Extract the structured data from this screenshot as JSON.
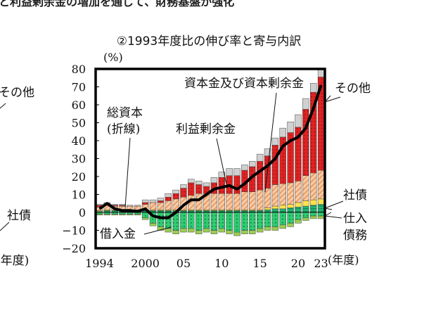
{
  "page_header": "と利益剰余金の増加を通じて、財務基盤が強化",
  "left_fragments": {
    "other": "その他",
    "bonds": "社債",
    "year": "(年度)"
  },
  "chart_data": {
    "type": "bar",
    "stacked": true,
    "title": "②1993年度比の伸び率と寄与内訳",
    "ylabel": "(%)",
    "xlabel": "(年度)",
    "ylim": [
      -20,
      80
    ],
    "yticks": [
      80,
      70,
      60,
      50,
      40,
      30,
      20,
      10,
      0,
      -10,
      -20
    ],
    "xtick_labels": [
      {
        "year": 1994,
        "label": "1994"
      },
      {
        "year": 2000,
        "label": "2000"
      },
      {
        "year": 2005,
        "label": "05"
      },
      {
        "year": 2010,
        "label": "10"
      },
      {
        "year": 2015,
        "label": "15"
      },
      {
        "year": 2020,
        "label": "20"
      },
      {
        "year": 2023,
        "label": "23"
      }
    ],
    "x": [
      1994,
      1995,
      1996,
      1997,
      1998,
      1999,
      2000,
      2001,
      2002,
      2003,
      2004,
      2005,
      2006,
      2007,
      2008,
      2009,
      2010,
      2011,
      2012,
      2013,
      2014,
      2015,
      2016,
      2017,
      2018,
      2019,
      2020,
      2021,
      2022,
      2023
    ],
    "series": [
      {
        "key": "borrowings",
        "name": "借入金",
        "color": "#2ecc71",
        "values": [
          -1,
          -1,
          -1,
          -1,
          -1,
          -1,
          -3,
          -6,
          -8,
          -9,
          -10,
          -9,
          -9,
          -10,
          -9,
          -10,
          -9,
          -10,
          -11,
          -10,
          -10,
          -9,
          -8,
          -8,
          -7,
          -6,
          -4,
          -3,
          -2,
          -2
        ]
      },
      {
        "key": "trade_payables",
        "name": "仕入債務",
        "color": "#9acd50",
        "values": [
          -0.5,
          -0.5,
          -0.5,
          -0.5,
          -0.5,
          -0.5,
          -1,
          -1.5,
          -2,
          -2,
          -2,
          -2,
          -2,
          -2,
          -2,
          -2,
          -2,
          -2,
          -2,
          -2,
          -2,
          -2,
          -2,
          -2,
          -2,
          -2,
          -2,
          -1.5,
          -1.5,
          -1.5
        ]
      },
      {
        "key": "bonds",
        "name": "社債",
        "color": "#22b573",
        "values": [
          0.5,
          1,
          1,
          1,
          1,
          1,
          1,
          1,
          1,
          1,
          1,
          1,
          1,
          1,
          1,
          1,
          1,
          1,
          1,
          1,
          1,
          1,
          1.5,
          2,
          2,
          2.5,
          3,
          3.5,
          4,
          4.5
        ]
      },
      {
        "key": "yellow",
        "name": "",
        "color": "#ffe24a",
        "values": [
          0.5,
          0.5,
          0.5,
          0.5,
          0.5,
          0.5,
          0.5,
          0.5,
          0.5,
          0.5,
          0.5,
          0.5,
          0.5,
          0.5,
          0.5,
          0.5,
          0.5,
          0.5,
          0.5,
          0.5,
          0.5,
          0.5,
          1,
          1.5,
          2,
          2,
          2.5,
          3,
          3,
          3
        ]
      },
      {
        "key": "capital",
        "name": "資本金及び資本剰余金",
        "color": "#f4b887",
        "values": [
          2,
          2.5,
          2,
          2,
          2,
          2,
          3,
          4,
          4,
          5,
          6,
          7,
          8,
          9,
          9,
          9,
          9,
          9,
          9,
          10,
          10,
          11,
          11,
          12,
          12,
          12,
          12,
          14,
          15,
          16
        ]
      },
      {
        "key": "retained",
        "name": "利益剰余金",
        "color": "#dd2222",
        "values": [
          1,
          1,
          0.5,
          0.5,
          0,
          0,
          1,
          0,
          1,
          2,
          3,
          5,
          7,
          5,
          4,
          6,
          9,
          10,
          10,
          12,
          14,
          16,
          18,
          22,
          26,
          28,
          30,
          37,
          45,
          52
        ]
      },
      {
        "key": "other",
        "name": "その他",
        "color": "#d0d0d0",
        "values": [
          0.5,
          0.5,
          0.5,
          0.5,
          0.5,
          0.5,
          1.5,
          1.5,
          1.5,
          2,
          2,
          2,
          2,
          2,
          2,
          3,
          3,
          4,
          4,
          3,
          3,
          4,
          4,
          4,
          5,
          6,
          7,
          6,
          5,
          5
        ]
      }
    ],
    "line": {
      "name": "総資本(折線)",
      "values": [
        2,
        5,
        2,
        1,
        1,
        0.5,
        2,
        -2,
        -3,
        -3,
        0,
        4,
        7,
        7,
        10,
        13,
        14,
        15,
        13,
        16,
        20,
        23,
        26,
        30,
        37,
        40,
        42,
        47,
        58,
        71
      ]
    },
    "annotations": {
      "capital": "資本金及び資本剰余金",
      "other": "その他",
      "total_line_1": "総資本",
      "total_line_2": "(折線)",
      "retained": "利益剰余金",
      "bonds": "社債",
      "trade_1": "仕入",
      "trade_2": "債務",
      "borrowings": "借入金"
    }
  }
}
